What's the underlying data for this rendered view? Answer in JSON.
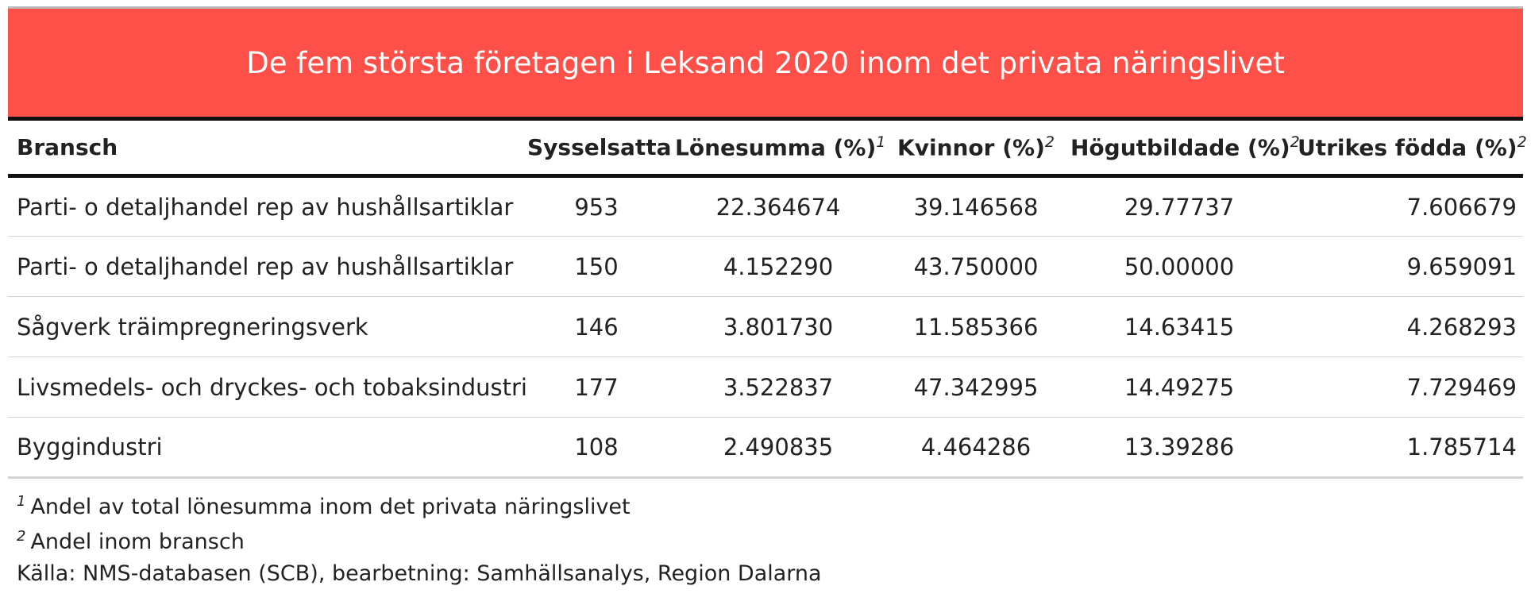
{
  "colors": {
    "title_background": "#FE5048",
    "title_text": "#FFFFFF"
  },
  "title": "De fem största företagen i Leksand 2020 inom det privata näringslivet",
  "table": {
    "columns": [
      {
        "label": "Bransch",
        "marker": ""
      },
      {
        "label": "Sysselsatta",
        "marker": ""
      },
      {
        "label": "Lönesumma (%)",
        "marker": "1"
      },
      {
        "label": "Kvinnor (%)",
        "marker": "2"
      },
      {
        "label": "Högutbildade (%)",
        "marker": "2"
      },
      {
        "label": "Utrikes födda (%)",
        "marker": "2"
      }
    ],
    "rows": [
      [
        "Parti- o detaljhandel rep av hushållsartiklar",
        "953",
        "22.364674",
        "39.146568",
        "29.77737",
        "7.606679"
      ],
      [
        "Parti- o detaljhandel rep av hushållsartiklar",
        "150",
        "4.152290",
        "43.750000",
        "50.00000",
        "9.659091"
      ],
      [
        "Sågverk träimpregneringsverk",
        "146",
        "3.801730",
        "11.585366",
        "14.63415",
        "4.268293"
      ],
      [
        "Livsmedels- och dryckes- och tobaksindustri",
        "177",
        "3.522837",
        "47.342995",
        "14.49275",
        "7.729469"
      ],
      [
        "Byggindustri",
        "108",
        "2.490835",
        "4.464286",
        "13.39286",
        "1.785714"
      ]
    ]
  },
  "footnotes": [
    {
      "marker": "1",
      "text": "Andel av total lönesumma inom det privata näringslivet"
    },
    {
      "marker": "2",
      "text": "Andel inom bransch"
    }
  ],
  "source": "Källa: NMS-databasen (SCB), bearbetning: Samhällsanalys, Region Dalarna"
}
